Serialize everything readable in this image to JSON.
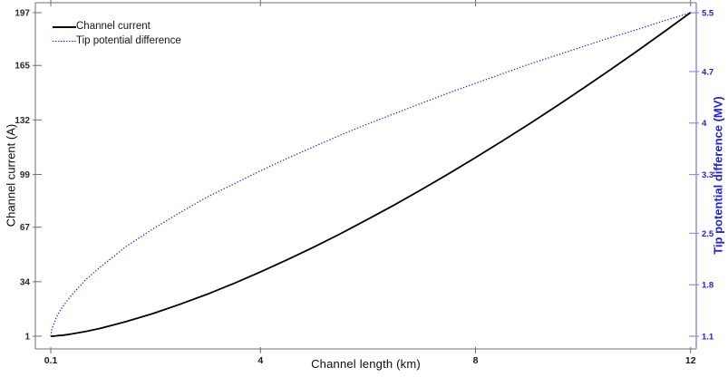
{
  "figure": {
    "x_axis_label": "Channel length (km)",
    "y_left_axis_label": "Channel current (A)",
    "y_right_axis_label": "Tip potential difference (MV)",
    "legend": {
      "position": "top-left",
      "entries": [
        {
          "label": "Channel current",
          "color": "#000000",
          "line_style": "solid"
        },
        {
          "label": "Tip potential difference",
          "color": "#2626d8",
          "line_style": "dotted"
        }
      ]
    }
  },
  "chart_data": {
    "type": "line",
    "title": "",
    "xlabel": "Channel length (km)",
    "ylabel_left": "Channel current (A)",
    "ylabel_right": "Tip potential difference (MV)",
    "grid": false,
    "legend_position": "top-left",
    "xlim": [
      -0.187,
      12.106
    ],
    "ylim_left": [
      -6.7,
      203.0
    ],
    "ylim_right": [
      0.928,
      5.636
    ],
    "x_ticks": {
      "values": [
        0.1,
        4,
        8,
        12
      ],
      "labels": [
        "0.1",
        "4",
        "8",
        "12"
      ]
    },
    "y_left_ticks": {
      "values": [
        1,
        34,
        67,
        99,
        132,
        165,
        197
      ],
      "labels": [
        "1",
        "34",
        "67",
        "99",
        "132",
        "165",
        "197"
      ]
    },
    "y_right_ticks": {
      "values": [
        1.1,
        1.8,
        2.5,
        3.3,
        4,
        4.7,
        5.5
      ],
      "labels": [
        "1.1",
        "1.8",
        "2.5",
        "3.3",
        "4",
        "4.7",
        "5.5"
      ]
    },
    "colors": {
      "frame": "#707070",
      "tick_label_left": "#2b2b2b",
      "tick_label_bottom": "#1a1a1a",
      "right_axis_spine": "#8f8fe3",
      "right_tick_label": "#2424cc",
      "series_current": "#000000",
      "series_potential": "#2626d8"
    },
    "x_shared": [
      0.1,
      0.12,
      0.15,
      0.2,
      0.25,
      0.3,
      0.4,
      0.5,
      0.75,
      1,
      1.5,
      2,
      2.5,
      3,
      3.5,
      4,
      4.5,
      5,
      5.5,
      6,
      6.5,
      7,
      7.5,
      8,
      8.5,
      9,
      9.5,
      10,
      10.5,
      11,
      11.5,
      12
    ],
    "series": [
      {
        "name": "Channel current",
        "axis": "left",
        "color": "#000000",
        "line_style": "solid",
        "line_width": 1.8,
        "y": [
          1,
          1,
          1.1,
          1.2,
          1.4,
          1.5,
          1.9,
          2.4,
          3.9,
          5.6,
          9.8,
          14.7,
          20.3,
          26.3,
          32.9,
          39.9,
          47.3,
          55.1,
          63.3,
          71.9,
          80.7,
          89.9,
          99.4,
          109.2,
          119.3,
          129.6,
          140.2,
          151.1,
          162.2,
          173.6,
          185.2,
          197
        ]
      },
      {
        "name": "Tip potential difference",
        "axis": "right",
        "color": "#2626d8",
        "line_style": "dotted",
        "line_width": 1.3,
        "y": [
          1.1,
          1.2,
          1.26,
          1.35,
          1.42,
          1.48,
          1.58,
          1.67,
          1.87,
          2.03,
          2.32,
          2.56,
          2.78,
          2.99,
          3.17,
          3.35,
          3.52,
          3.68,
          3.84,
          3.99,
          4.13,
          4.27,
          4.41,
          4.54,
          4.67,
          4.8,
          4.92,
          5.04,
          5.16,
          5.27,
          5.39,
          5.5
        ]
      }
    ]
  }
}
